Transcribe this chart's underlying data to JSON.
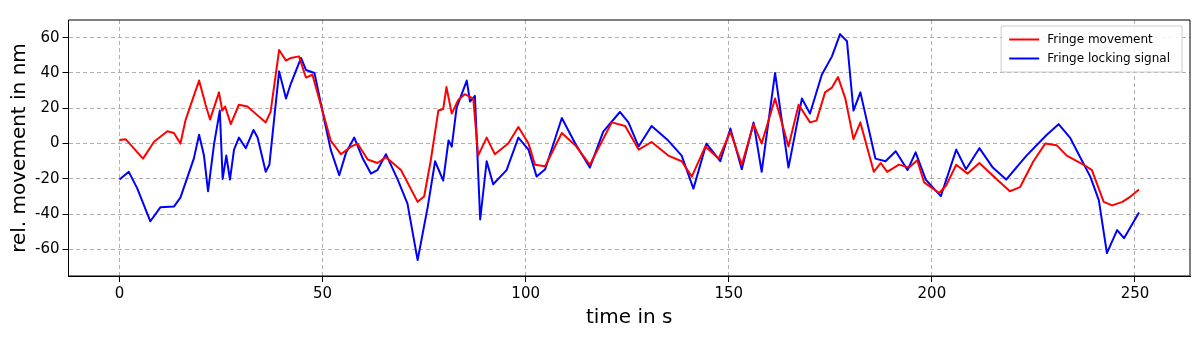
{
  "chart_data": {
    "type": "line",
    "xlabel": "time in s",
    "ylabel": "rel. movement in nm",
    "xlim": [
      -12.55,
      263.55
    ],
    "ylim": [
      -75,
      70
    ],
    "xticks": [
      0,
      50,
      100,
      150,
      200,
      250
    ],
    "yticks": [
      -60,
      -40,
      -20,
      0,
      20,
      40,
      60
    ],
    "grid": true,
    "legend": "top right",
    "marker": "none",
    "line_style": "solid",
    "series": [
      {
        "name": "Fringe movement",
        "color": "#ff0000",
        "x": [
          0,
          1.5,
          5.8,
          8.5,
          11.8,
          13.4,
          15,
          16.3,
          18.3,
          19.6,
          21.2,
          22.3,
          24.5,
          25.3,
          26,
          27.4,
          29.4,
          31.5,
          36,
          37.2,
          39.3,
          41,
          42.2,
          44.2,
          45.9,
          47.5,
          50.4,
          52,
          54.5,
          57,
          58.6,
          61.1,
          63.5,
          65.6,
          69.3,
          73.4,
          75,
          76.6,
          78.5,
          79.7,
          80.5,
          81.8,
          83.4,
          85,
          87.1,
          88.3,
          90.4,
          92.4,
          95.7,
          98.2,
          100.7,
          102.3,
          104.8,
          108.9,
          112.2,
          115.8,
          121.2,
          124.5,
          127.8,
          131,
          135.1,
          138.4,
          140.9,
          144.2,
          147.5,
          150.4,
          153.2,
          156.1,
          158.1,
          161.4,
          164.7,
          167.2,
          170,
          171.6,
          173.7,
          175.4,
          176.9,
          178.7,
          180.7,
          182.4,
          185.7,
          187.4,
          189,
          191.9,
          194.4,
          196.4,
          198.1,
          201.8,
          203.5,
          206,
          208.8,
          211.7,
          215.9,
          219.2,
          221.7,
          225,
          227.9,
          230.7,
          233.2,
          237.4,
          239.4,
          242.3,
          244.4,
          246.9,
          248.9,
          251
        ],
        "values": [
          2,
          2.5,
          -8.5,
          1,
          7,
          6,
          0,
          13.6,
          27,
          35.7,
          22,
          13.6,
          29,
          18.7,
          21,
          11,
          22,
          21,
          12,
          18,
          53,
          47,
          48.5,
          49.4,
          37.4,
          39,
          15,
          1.7,
          -6,
          -1.7,
          0,
          -9,
          -11,
          -7.7,
          -15,
          -33,
          -30,
          -10,
          18.7,
          19.6,
          32,
          17,
          24.7,
          28,
          25.5,
          -6.8,
          3.4,
          -6,
          0,
          9.4,
          0,
          -12,
          -12.8,
          6,
          -0.9,
          -12,
          12,
          10,
          -3.4,
          0.9,
          -6.8,
          -10,
          -18.7,
          -1.7,
          -8.5,
          6.8,
          -12,
          11,
          0,
          25.5,
          -1.7,
          22,
          12,
          13,
          29,
          31.7,
          37.7,
          25.5,
          2.5,
          12,
          -16,
          -11,
          -16,
          -11.9,
          -13.6,
          -9.4,
          -22,
          -28,
          -23.8,
          -12,
          -17,
          -11,
          -20,
          -27,
          -24.7,
          -10,
          0,
          -0.9,
          -6.8,
          -12,
          -15,
          -33,
          -35,
          -33,
          -30,
          -26
        ]
      },
      {
        "name": "Fringe locking signal",
        "color": "#0000ff",
        "x": [
          0,
          2.3,
          4.4,
          7.6,
          10.1,
          13.4,
          15,
          18.3,
          19.6,
          20.8,
          21.8,
          23.3,
          24.7,
          25.4,
          26.3,
          27.2,
          28.2,
          29.4,
          31.1,
          33,
          34,
          36,
          36.9,
          39.3,
          41,
          42.2,
          44.7,
          45.9,
          48,
          50.4,
          52,
          54.1,
          55.8,
          57.8,
          59.9,
          61.9,
          63.5,
          65.6,
          68.5,
          70.9,
          73.4,
          75.9,
          77.7,
          79.7,
          81,
          81.8,
          83,
          85.5,
          86.3,
          87.5,
          88.8,
          90.4,
          92,
          95.3,
          98.2,
          100.7,
          102.7,
          104.8,
          108.9,
          112.2,
          115.8,
          119.1,
          123.2,
          125.3,
          127.8,
          131,
          135.1,
          138.4,
          141.3,
          144.5,
          147.9,
          150.4,
          153.2,
          156.1,
          158.1,
          161.4,
          164.7,
          168,
          170,
          172.9,
          175.4,
          177.4,
          179.1,
          180.7,
          182.4,
          186.1,
          188.6,
          191.1,
          194,
          196,
          198.5,
          202.2,
          206,
          208.4,
          211.7,
          215,
          218.3,
          223.3,
          228.3,
          231.2,
          234,
          236.9,
          239,
          241.1,
          243.1,
          245.6,
          247.3,
          251
        ],
        "values": [
          -20.4,
          -16,
          -25.5,
          -44,
          -36,
          -35.7,
          -30.6,
          -8.5,
          5,
          -6.8,
          -27,
          0,
          18.7,
          -20,
          -6.8,
          -20.4,
          -3.4,
          3.4,
          -2.6,
          7.7,
          3.4,
          -16,
          -12,
          40.9,
          25.5,
          34,
          48.5,
          41.7,
          40,
          13.6,
          -3.4,
          -17.9,
          -5,
          3.4,
          -8.5,
          -17,
          -15,
          -6,
          -20.4,
          -34,
          -66,
          -35.7,
          -10,
          -21,
          1.7,
          -1.7,
          20.4,
          35.7,
          23.8,
          27,
          -43,
          -10,
          -23,
          -15,
          3.4,
          -3.4,
          -18.7,
          -14.5,
          14.5,
          0,
          -13.6,
          6.8,
          17.9,
          12,
          -1.7,
          10,
          1.7,
          -6.8,
          -25.5,
          0,
          -10,
          8.5,
          -14.5,
          12,
          -16,
          40,
          -13.6,
          25.5,
          17,
          39,
          49.4,
          62,
          58,
          18.7,
          29,
          -8.5,
          -10,
          -4.3,
          -15,
          -5,
          -20.4,
          -29.8,
          -3.4,
          -14.5,
          -2.6,
          -13.6,
          -20.4,
          -6.8,
          5,
          11,
          3.4,
          -9.4,
          -18.7,
          -32,
          -62,
          -49,
          -53.6,
          -39
        ]
      }
    ]
  }
}
